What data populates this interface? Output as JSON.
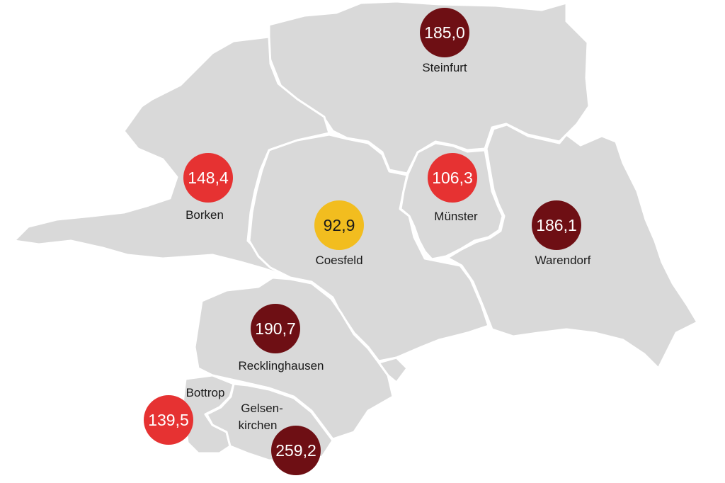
{
  "map": {
    "legend_colors": {
      "dark": "#6e0f14",
      "red": "#e63232",
      "yellow": "#f2bd1f"
    },
    "districts": [
      {
        "id": "steinfurt",
        "name": "Steinfurt",
        "value": "185,0",
        "color": "#6e0f14"
      },
      {
        "id": "borken",
        "name": "Borken",
        "value": "148,4",
        "color": "#e63232"
      },
      {
        "id": "coesfeld",
        "name": "Coesfeld",
        "value": "92,9",
        "color": "#f2bd1f"
      },
      {
        "id": "muenster",
        "name": "Münster",
        "value": "106,3",
        "color": "#e63232"
      },
      {
        "id": "warendorf",
        "name": "Warendorf",
        "value": "186,1",
        "color": "#6e0f14"
      },
      {
        "id": "recklinghausen",
        "name": "Recklinghausen",
        "value": "190,7",
        "color": "#6e0f14"
      },
      {
        "id": "bottrop",
        "name": "Bottrop",
        "value": "139,5",
        "color": "#e63232"
      },
      {
        "id": "gelsenkirchen",
        "name_line1": "Gelsen-",
        "name_line2": "kirchen",
        "value": "259,2",
        "color": "#6e0f14"
      }
    ]
  }
}
